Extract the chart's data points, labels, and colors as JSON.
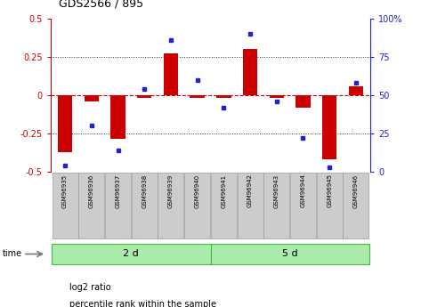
{
  "title": "GDS2566 / 895",
  "samples": [
    "GSM96935",
    "GSM96936",
    "GSM96937",
    "GSM96938",
    "GSM96939",
    "GSM96940",
    "GSM96941",
    "GSM96942",
    "GSM96943",
    "GSM96944",
    "GSM96945",
    "GSM96946"
  ],
  "log2_ratio": [
    -0.37,
    -0.04,
    -0.285,
    -0.02,
    0.27,
    -0.02,
    -0.02,
    0.3,
    -0.02,
    -0.08,
    -0.42,
    0.06
  ],
  "percentile_rank": [
    4,
    30,
    14,
    54,
    86,
    60,
    42,
    90,
    46,
    22,
    3,
    58
  ],
  "groups": [
    {
      "label": "2 d",
      "start": 0,
      "end": 6
    },
    {
      "label": "5 d",
      "start": 6,
      "end": 12
    }
  ],
  "ylim_left": [
    -0.5,
    0.5
  ],
  "ylim_right": [
    0,
    100
  ],
  "yticks_left": [
    -0.5,
    -0.25,
    0,
    0.25,
    0.5
  ],
  "yticks_right": [
    0,
    25,
    50,
    75,
    100
  ],
  "ytick_labels_left": [
    "-0.5",
    "-0.25",
    "0",
    "0.25",
    "0.5"
  ],
  "ytick_labels_right": [
    "0",
    "25",
    "50",
    "75",
    "100%"
  ],
  "hlines_dotted": [
    0.25,
    -0.25
  ],
  "hline_dashed": 0,
  "bar_color": "#cc0000",
  "dot_color": "#2222cc",
  "bar_width": 0.55,
  "group_bg": "#aaeaaa",
  "group_edge": "#44bb44",
  "xlabel_time": "time",
  "legend_items": [
    {
      "color": "#cc0000",
      "label": "log2 ratio"
    },
    {
      "color": "#2222cc",
      "label": "percentile rank within the sample"
    }
  ],
  "left_tick_color": "#cc0000",
  "right_tick_color": "#2222cc",
  "zero_line_color": "#cc0000",
  "sample_box_color": "#cccccc",
  "sample_box_edge": "#999999"
}
